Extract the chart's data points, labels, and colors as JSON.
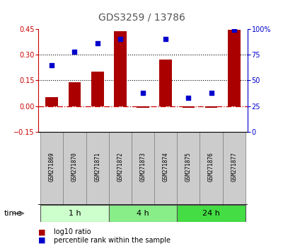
{
  "title": "GDS3259 / 13786",
  "samples": [
    "GSM271869",
    "GSM271870",
    "GSM271871",
    "GSM271872",
    "GSM271873",
    "GSM271874",
    "GSM271875",
    "GSM271876",
    "GSM271877"
  ],
  "log10_ratio": [
    0.05,
    0.14,
    0.2,
    0.435,
    -0.01,
    0.27,
    -0.01,
    -0.01,
    0.445
  ],
  "percentile_rank": [
    65,
    78,
    86,
    90,
    38,
    90,
    33,
    38,
    99
  ],
  "groups": [
    {
      "label": "1 h",
      "start": 0,
      "end": 3,
      "color": "#ccffcc"
    },
    {
      "label": "4 h",
      "start": 3,
      "end": 6,
      "color": "#88ee88"
    },
    {
      "label": "24 h",
      "start": 6,
      "end": 9,
      "color": "#44dd44"
    }
  ],
  "bar_color": "#aa0000",
  "dot_color": "#0000cc",
  "ylim_left": [
    -0.15,
    0.45
  ],
  "ylim_right": [
    0,
    100
  ],
  "yticks_left": [
    -0.15,
    0.0,
    0.15,
    0.3,
    0.45
  ],
  "yticks_right": [
    0,
    25,
    50,
    75,
    100
  ],
  "hlines": [
    0.15,
    0.3
  ],
  "zero_line_color": "#cc0000",
  "label_color_red": "#cc0000",
  "label_color_blue": "#0000cc",
  "title_color": "#555555"
}
